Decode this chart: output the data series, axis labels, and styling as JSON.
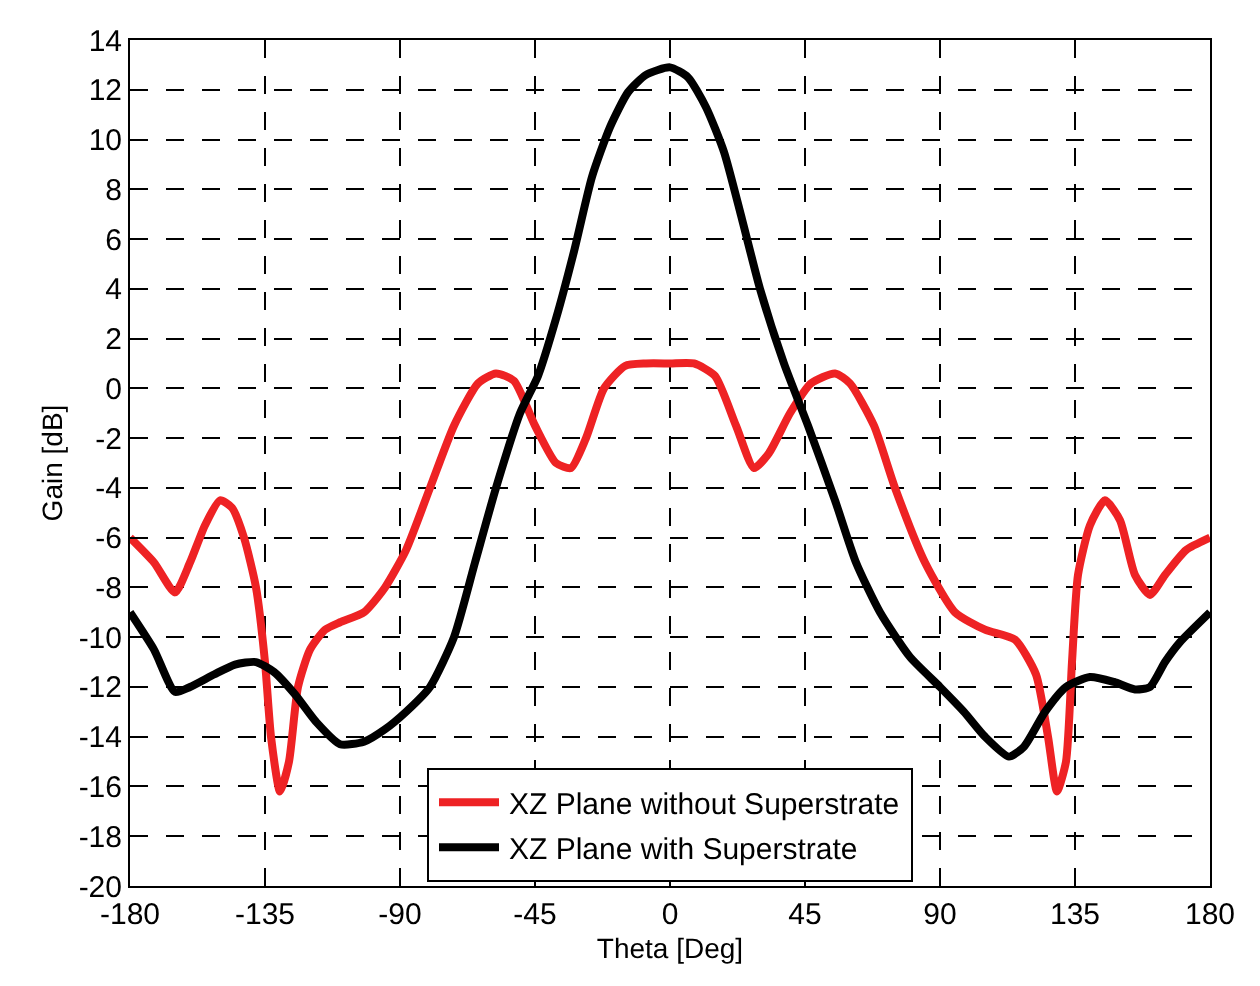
{
  "chart_data": {
    "type": "line",
    "xlabel": "Theta [Deg]",
    "ylabel": "Gain [dB]",
    "xlim": [
      -180,
      180
    ],
    "xticks": [
      -180,
      -135,
      -90,
      -45,
      0,
      45,
      90,
      135,
      180
    ],
    "ylim": [
      -20,
      14
    ],
    "yticks": [
      -20,
      -18,
      -16,
      -14,
      -12,
      -10,
      -8,
      -6,
      -4,
      -2,
      0,
      2,
      4,
      6,
      8,
      10,
      12,
      14
    ],
    "grid": true,
    "legend": "bottom",
    "marker": "none",
    "line_style": "solid",
    "series": [
      {
        "name": "XZ Plane without Superstrate",
        "color": "#ee2224",
        "x": [
          -180,
          -172,
          -165,
          -160,
          -155,
          -150,
          -146,
          -142,
          -138,
          -135,
          -133,
          -130,
          -127,
          -124,
          -120,
          -115,
          -110,
          -102,
          -95,
          -88,
          -80,
          -72,
          -64,
          -58,
          -52,
          -45,
          -38,
          -33,
          -28,
          -22,
          -15,
          -8,
          0,
          8,
          15,
          22,
          28,
          33,
          40,
          47,
          55,
          60,
          68,
          75,
          85,
          95,
          105,
          115,
          122,
          126,
          129,
          132,
          134,
          136,
          140,
          145,
          150,
          155,
          160,
          165,
          172,
          180
        ],
        "values": [
          -6,
          -7,
          -8.2,
          -7,
          -5.5,
          -4.5,
          -4.8,
          -6,
          -8,
          -11,
          -14,
          -16.2,
          -15,
          -12,
          -10.5,
          -9.7,
          -9.4,
          -9,
          -8,
          -6.5,
          -4,
          -1.5,
          0.2,
          0.6,
          0.3,
          -1.5,
          -3,
          -3.2,
          -2,
          0,
          0.9,
          1,
          1,
          1,
          0.5,
          -1.5,
          -3.2,
          -2.6,
          -1,
          0.2,
          0.6,
          0.2,
          -1.5,
          -4,
          -7,
          -9,
          -9.7,
          -10.1,
          -11.5,
          -14,
          -16.2,
          -15,
          -11,
          -7.5,
          -5.5,
          -4.5,
          -5.3,
          -7.5,
          -8.3,
          -7.5,
          -6.5,
          -6
        ]
      },
      {
        "name": "XZ Plane with Superstrate",
        "color": "#000000",
        "x": [
          -180,
          -172,
          -165,
          -160,
          -152,
          -145,
          -138,
          -132,
          -125,
          -118,
          -110,
          -102,
          -95,
          -88,
          -80,
          -72,
          -65,
          -58,
          -50,
          -44,
          -38,
          -32,
          -26,
          -20,
          -14,
          -8,
          0,
          6,
          12,
          18,
          24,
          30,
          38,
          46,
          55,
          62,
          70,
          80,
          90,
          98,
          105,
          113,
          118,
          125,
          132,
          140,
          148,
          155,
          160,
          165,
          170,
          180
        ],
        "values": [
          -9,
          -10.5,
          -12.2,
          -12,
          -11.5,
          -11.1,
          -11,
          -11.4,
          -12.3,
          -13.4,
          -14.3,
          -14.2,
          -13.7,
          -13,
          -12,
          -10,
          -7,
          -4,
          -1,
          0.5,
          2.8,
          5.5,
          8.5,
          10.5,
          11.9,
          12.6,
          12.9,
          12.5,
          11.3,
          9.5,
          6.8,
          4,
          1,
          -1.5,
          -4.5,
          -7,
          -9,
          -10.8,
          -12,
          -13,
          -14,
          -14.8,
          -14.4,
          -13,
          -12,
          -11.6,
          -11.8,
          -12.1,
          -12,
          -11,
          -10.2,
          -9
        ]
      }
    ]
  }
}
